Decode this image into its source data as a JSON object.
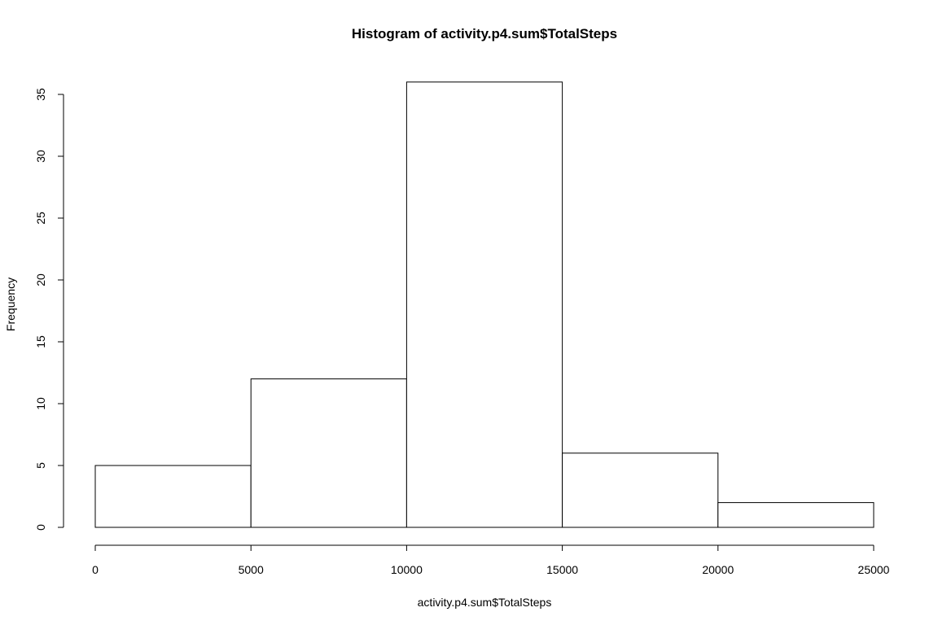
{
  "chart_data": {
    "type": "bar",
    "title": "Histogram of activity.p4.sum$TotalSteps",
    "xlabel": "activity.p4.sum$TotalSteps",
    "ylabel": "Frequency",
    "bins": [
      {
        "from": 0,
        "to": 5000,
        "count": 5
      },
      {
        "from": 5000,
        "to": 10000,
        "count": 12
      },
      {
        "from": 10000,
        "to": 15000,
        "count": 36
      },
      {
        "from": 15000,
        "to": 20000,
        "count": 6
      },
      {
        "from": 20000,
        "to": 25000,
        "count": 2
      }
    ],
    "xlim": [
      0,
      25000
    ],
    "ylim": [
      0,
      35
    ],
    "x_ticks": [
      "0",
      "5000",
      "10000",
      "15000",
      "20000",
      "25000"
    ],
    "y_ticks": [
      "0",
      "5",
      "10",
      "15",
      "20",
      "25",
      "30",
      "35"
    ],
    "grid": false,
    "colors": {
      "bar_fill": "#ffffff",
      "bar_stroke": "#000000"
    }
  }
}
